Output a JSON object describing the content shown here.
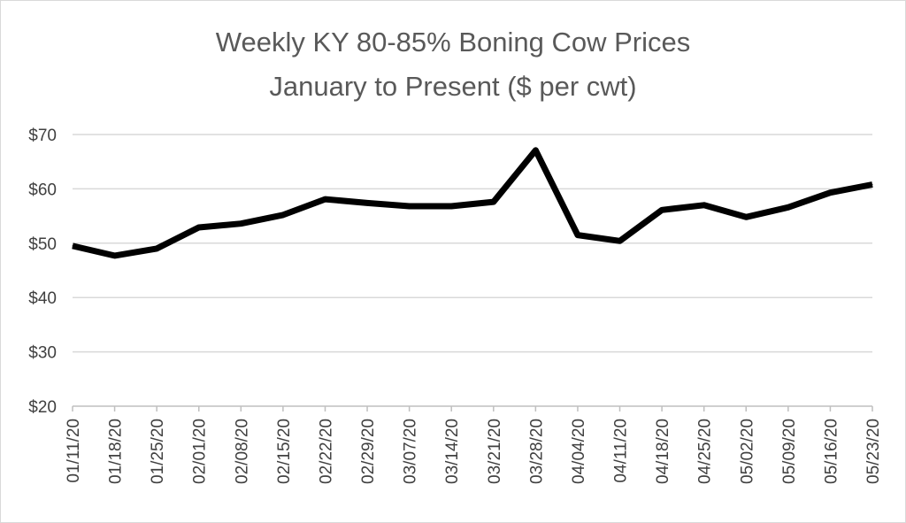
{
  "chart_data": {
    "type": "line",
    "title": [
      "Weekly KY 80-85% Boning Cow Prices",
      "January to Present ($ per cwt)"
    ],
    "xlabel": "",
    "ylabel": "",
    "ylim": [
      20,
      70
    ],
    "yticks": [
      20,
      30,
      40,
      50,
      60,
      70
    ],
    "ytick_labels": [
      "$20",
      "$30",
      "$40",
      "$50",
      "$60",
      "$70"
    ],
    "grid": true,
    "legend": "none",
    "categories": [
      "01/11/20",
      "01/18/20",
      "01/25/20",
      "02/01/20",
      "02/08/20",
      "02/15/20",
      "02/22/20",
      "02/29/20",
      "03/07/20",
      "03/14/20",
      "03/21/20",
      "03/28/20",
      "04/04/20",
      "04/11/20",
      "04/18/20",
      "04/25/20",
      "05/02/20",
      "05/09/20",
      "05/16/20",
      "05/23/20"
    ],
    "series": [
      {
        "name": "Boning Cow Price",
        "color": "#000000",
        "values": [
          49.5,
          47.7,
          49.0,
          52.9,
          53.6,
          55.2,
          58.1,
          57.4,
          56.8,
          56.8,
          57.6,
          67.1,
          51.5,
          50.4,
          56.1,
          57.0,
          54.8,
          56.6,
          59.3,
          60.8
        ]
      }
    ]
  }
}
